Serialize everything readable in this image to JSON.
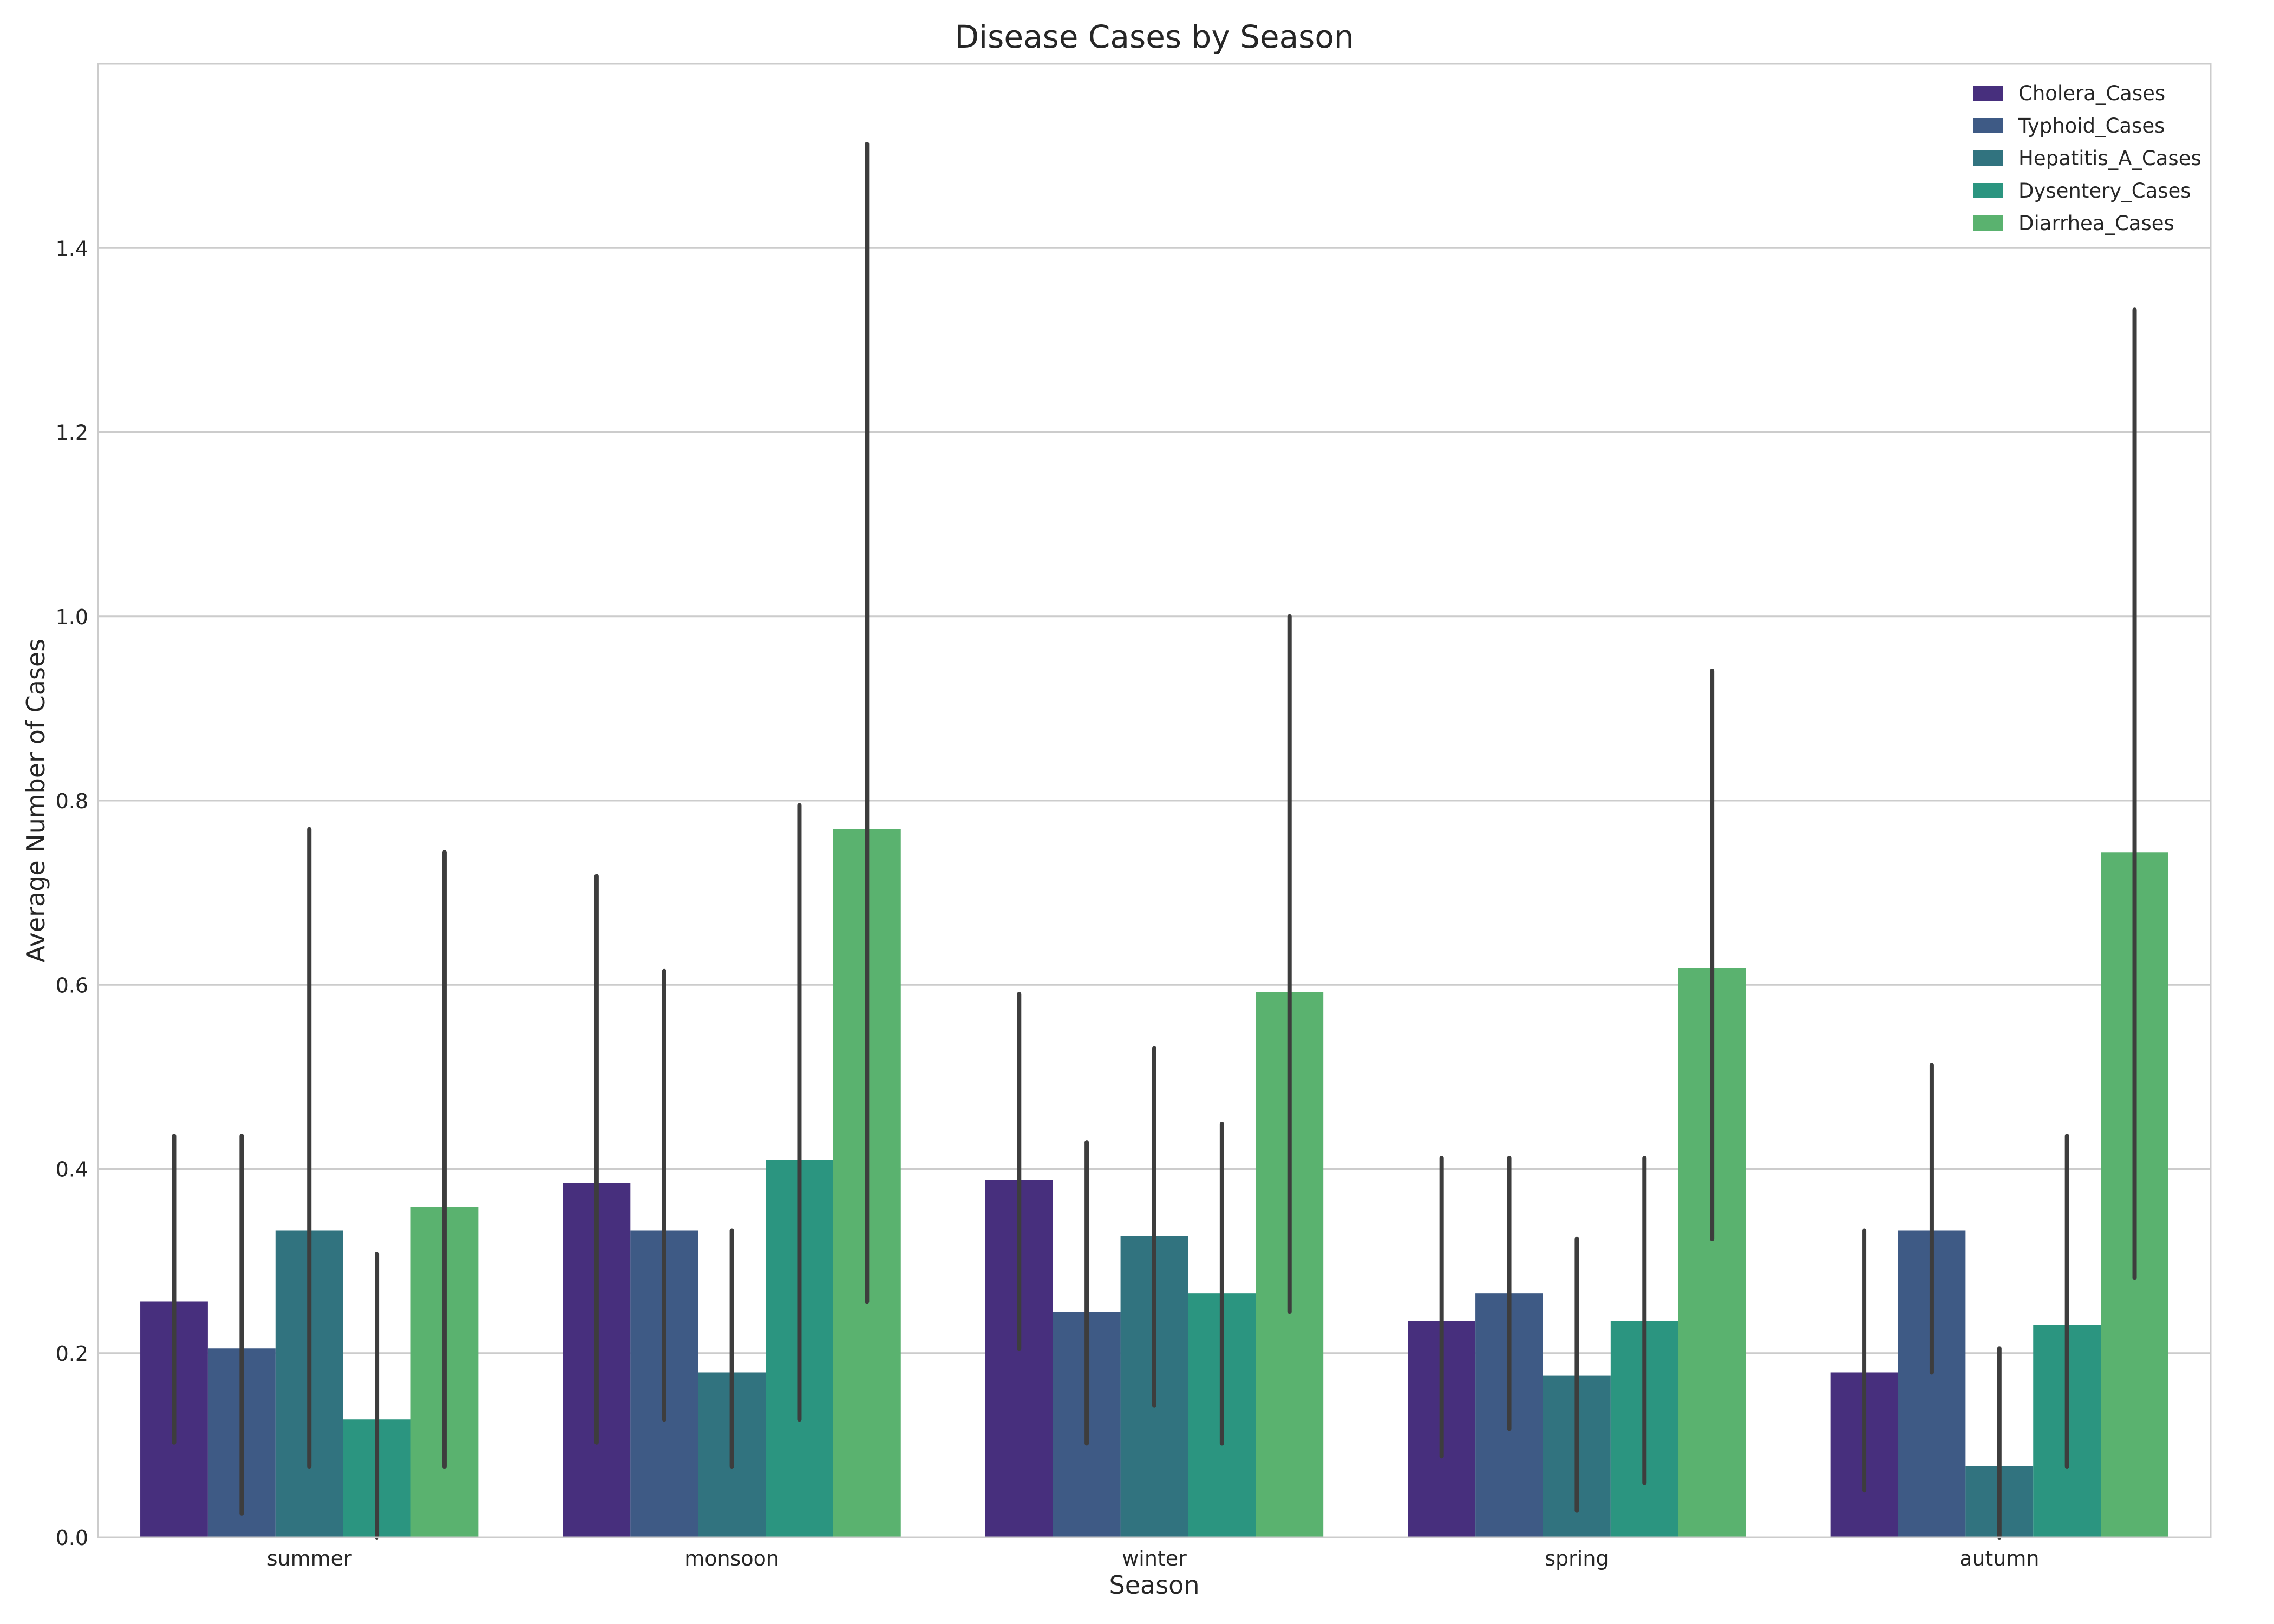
{
  "chart_data": {
    "type": "bar",
    "title": "Disease Cases by Season",
    "xlabel": "Season",
    "ylabel": "Average Number of Cases",
    "categories": [
      "summer",
      "monsoon",
      "winter",
      "spring",
      "autumn"
    ],
    "ylim": [
      0,
      1.6
    ],
    "yticks": [
      "0.0",
      "0.2",
      "0.4",
      "0.6",
      "0.8",
      "1.0",
      "1.2",
      "1.4"
    ],
    "grid": true,
    "legend_position": "top-right",
    "error_bars": true,
    "series": [
      {
        "name": "Cholera_Cases",
        "color": "#472f7d",
        "values": [
          0.256,
          0.385,
          0.388,
          0.235,
          0.179
        ],
        "ci": [
          [
            0.103,
            0.436
          ],
          [
            0.103,
            0.718
          ],
          [
            0.205,
            0.59
          ],
          [
            0.088,
            0.412
          ],
          [
            0.051,
            0.333
          ]
        ]
      },
      {
        "name": "Typhoid_Cases",
        "color": "#3e5a85",
        "values": [
          0.205,
          0.333,
          0.245,
          0.265,
          0.333
        ],
        "ci": [
          [
            0.026,
            0.436
          ],
          [
            0.128,
            0.615
          ],
          [
            0.102,
            0.429
          ],
          [
            0.118,
            0.412
          ],
          [
            0.179,
            0.513
          ]
        ]
      },
      {
        "name": "Hepatitis_A_Cases",
        "color": "#31737f",
        "values": [
          0.333,
          0.179,
          0.327,
          0.176,
          0.077
        ],
        "ci": [
          [
            0.077,
            0.769
          ],
          [
            0.077,
            0.333
          ],
          [
            0.143,
            0.531
          ],
          [
            0.029,
            0.324
          ],
          [
            0.0,
            0.205
          ]
        ]
      },
      {
        "name": "Dysentery_Cases",
        "color": "#2b9580",
        "values": [
          0.128,
          0.41,
          0.265,
          0.235,
          0.231
        ],
        "ci": [
          [
            0.0,
            0.308
          ],
          [
            0.128,
            0.795
          ],
          [
            0.102,
            0.449
          ],
          [
            0.059,
            0.412
          ],
          [
            0.077,
            0.436
          ]
        ]
      },
      {
        "name": "Diarrhea_Cases",
        "color": "#5ab26f",
        "values": [
          0.359,
          0.769,
          0.592,
          0.618,
          0.744
        ],
        "ci": [
          [
            0.077,
            0.744
          ],
          [
            0.256,
            1.513
          ],
          [
            0.245,
            1.0
          ],
          [
            0.324,
            0.941
          ],
          [
            0.282,
            1.333
          ]
        ]
      }
    ]
  }
}
